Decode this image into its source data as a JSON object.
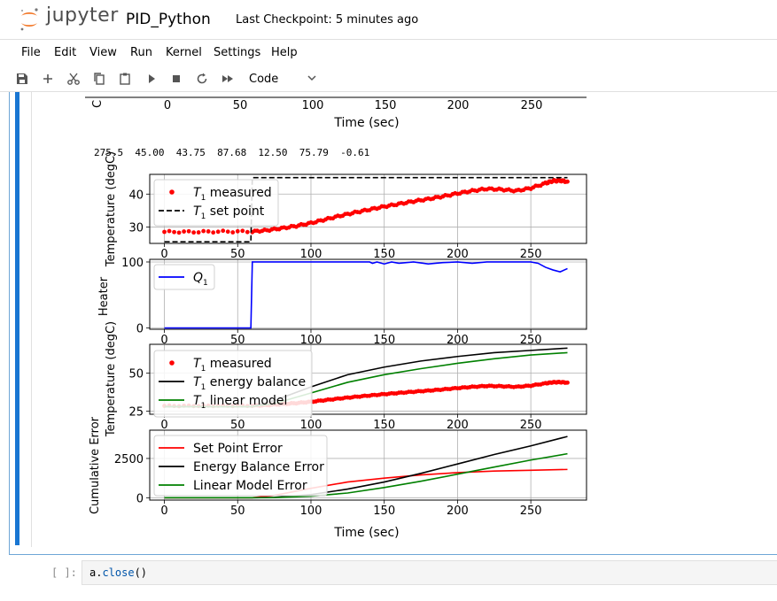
{
  "app": {
    "logo_text": "jupyter",
    "notebook_name": "PID_Python",
    "checkpoint": "Last Checkpoint: 5 minutes ago"
  },
  "menu": [
    "File",
    "Edit",
    "View",
    "Run",
    "Kernel",
    "Settings",
    "Help"
  ],
  "toolbar": {
    "cell_type": "Code",
    "icons": [
      "save-icon",
      "add-icon",
      "cut-icon",
      "copy-icon",
      "paste-icon",
      "run-icon",
      "stop-icon",
      "restart-icon",
      "fast-forward-icon"
    ]
  },
  "output": {
    "stdout": "275.5  45.00  43.75  87.68  12.50  75.79  -0.61",
    "top_partial": {
      "xticks": [
        "0",
        "50",
        "100",
        "150",
        "200",
        "250"
      ],
      "xlabel": "Time (sec)",
      "ylabel_fragment": "C"
    }
  },
  "next_cell": {
    "prompt": "[ ]:",
    "code_obj": "a.",
    "code_fn": "close",
    "code_args": "()"
  },
  "chart_data": [
    {
      "type": "scatter",
      "ylabel": "Temperature (degC)",
      "yticks": [
        "30",
        "40"
      ],
      "xticks": [
        "0",
        "50",
        "100",
        "150",
        "200",
        "250"
      ],
      "ylim": [
        25,
        46
      ],
      "xlim": [
        -10,
        288
      ],
      "grid": true,
      "legend": "top-left",
      "series": [
        {
          "name": "T1 measured",
          "style": "red-dots",
          "color": "#ff0000",
          "x": [
            0,
            20,
            40,
            60,
            70,
            80,
            90,
            100,
            110,
            120,
            130,
            140,
            150,
            160,
            170,
            180,
            190,
            200,
            210,
            220,
            230,
            240,
            250,
            260,
            265,
            270,
            275
          ],
          "y": [
            28.5,
            28.5,
            28.6,
            28.6,
            29.0,
            29.6,
            30.3,
            31.2,
            32.3,
            33.4,
            34.4,
            35.3,
            36.2,
            37.0,
            37.8,
            38.5,
            39.3,
            40.2,
            41.0,
            41.6,
            41.4,
            41.0,
            41.8,
            43.3,
            44.0,
            44.1,
            43.8
          ]
        },
        {
          "name": "T1 set point",
          "style": "black-dashed",
          "color": "#000000",
          "x": [
            0,
            59,
            59,
            60,
            275
          ],
          "y": [
            25.5,
            25.5,
            25.5,
            45.0,
            45.0
          ]
        }
      ]
    },
    {
      "type": "line",
      "ylabel": "Heater",
      "yticks": [
        "0",
        "100"
      ],
      "xticks": [
        "0",
        "50",
        "100",
        "150",
        "200",
        "250"
      ],
      "ylim": [
        -2,
        104
      ],
      "xlim": [
        -10,
        288
      ],
      "grid": true,
      "legend": "top-left",
      "series": [
        {
          "name": "Q1",
          "color": "#0000ff",
          "x": [
            0,
            59,
            60,
            140,
            142,
            145,
            150,
            155,
            160,
            170,
            180,
            190,
            200,
            210,
            220,
            230,
            240,
            250,
            255,
            260,
            265,
            270,
            275
          ],
          "y": [
            0,
            0,
            100,
            100,
            98,
            100,
            97,
            100,
            98,
            100,
            97,
            99,
            100,
            98,
            100,
            100,
            100,
            100,
            98,
            92,
            88,
            85,
            90
          ]
        }
      ]
    },
    {
      "type": "line",
      "ylabel": "Temperature (degC)",
      "yticks": [
        "25",
        "50"
      ],
      "xticks": [
        "0",
        "50",
        "100",
        "150",
        "200",
        "250"
      ],
      "ylim": [
        23,
        69
      ],
      "xlim": [
        -10,
        288
      ],
      "grid": true,
      "legend": "top-left",
      "series": [
        {
          "name": "T1 measured",
          "style": "red-dots",
          "color": "#ff0000",
          "x": [
            0,
            20,
            40,
            60,
            70,
            80,
            90,
            100,
            110,
            120,
            130,
            140,
            150,
            160,
            170,
            180,
            190,
            200,
            210,
            220,
            230,
            240,
            250,
            260,
            265,
            270,
            275
          ],
          "y": [
            28.5,
            28.5,
            28.6,
            28.6,
            29.0,
            29.6,
            30.3,
            31.2,
            32.3,
            33.4,
            34.4,
            35.3,
            36.2,
            37.0,
            37.8,
            38.5,
            39.3,
            40.2,
            41.0,
            41.6,
            41.4,
            41.0,
            41.8,
            43.3,
            44.0,
            44.1,
            43.8
          ]
        },
        {
          "name": "T1 energy balance",
          "color": "#000000",
          "x": [
            0,
            60,
            75,
            100,
            125,
            150,
            175,
            200,
            225,
            250,
            275
          ],
          "y": [
            28,
            28,
            32,
            41,
            49,
            54,
            58,
            61,
            63.5,
            65,
            66.5
          ]
        },
        {
          "name": "T1 linear model",
          "color": "#008000",
          "x": [
            0,
            60,
            75,
            100,
            125,
            150,
            175,
            200,
            225,
            250,
            275
          ],
          "y": [
            28,
            28,
            30,
            37,
            44,
            49,
            53,
            56.5,
            59.5,
            62,
            63.5
          ]
        }
      ]
    },
    {
      "type": "line",
      "ylabel": "Cumulative Error",
      "yticks": [
        "0",
        "2500"
      ],
      "xticks": [
        "0",
        "50",
        "100",
        "150",
        "200",
        "250"
      ],
      "xlabel": "Time (sec)",
      "ylim": [
        -150,
        4300
      ],
      "xlim": [
        -10,
        288
      ],
      "grid": true,
      "legend": "top-left",
      "series": [
        {
          "name": "Set Point Error",
          "color": "#ff0000",
          "x": [
            0,
            60,
            75,
            100,
            125,
            150,
            175,
            200,
            225,
            250,
            275
          ],
          "y": [
            0,
            0,
            150,
            600,
            1000,
            1250,
            1450,
            1600,
            1700,
            1750,
            1800
          ]
        },
        {
          "name": "Energy Balance Error",
          "color": "#000000",
          "x": [
            0,
            60,
            75,
            100,
            125,
            150,
            175,
            200,
            225,
            250,
            275
          ],
          "y": [
            0,
            0,
            20,
            200,
            550,
            1000,
            1550,
            2150,
            2750,
            3300,
            3900
          ]
        },
        {
          "name": "Linear Model Error",
          "color": "#008000",
          "x": [
            0,
            60,
            75,
            100,
            125,
            150,
            175,
            200,
            225,
            250,
            275
          ],
          "y": [
            0,
            0,
            10,
            100,
            300,
            650,
            1050,
            1500,
            1950,
            2400,
            2800
          ]
        }
      ]
    }
  ]
}
